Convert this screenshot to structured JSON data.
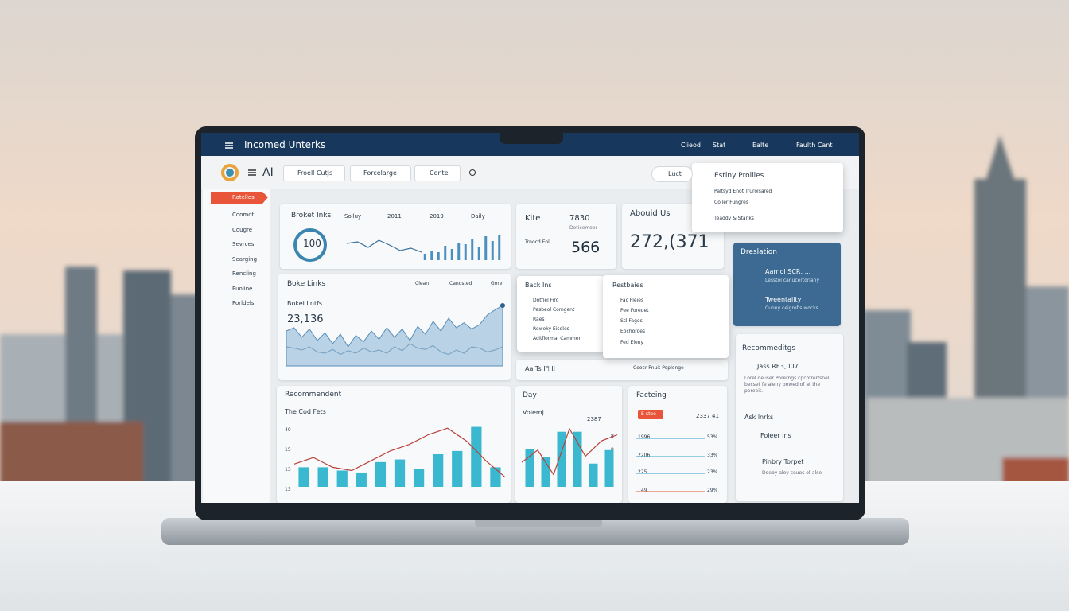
{
  "header": {
    "title": "Incomed Unterks",
    "menu": [
      "Clieod",
      "Stat",
      "Ealte",
      "Faulth Cant"
    ]
  },
  "toolbar": {
    "brand": "AI",
    "buttons": [
      "Froell Cutjs",
      "Forcelarge",
      "Conte"
    ],
    "search": "Luct"
  },
  "sidebar": [
    "Rotelles",
    "Coomot",
    "Cougre",
    "Sevrces",
    "Searging",
    "Rencling",
    "Puoline",
    "Porldels"
  ],
  "stats": {
    "title": "Broket Inks",
    "tabs": [
      "Solluy",
      "2011",
      "2019",
      "Daily"
    ],
    "gauge": "100",
    "line": {
      "values": [
        40,
        44,
        30,
        48,
        36,
        22,
        28,
        18
      ],
      "ylim": [
        0,
        60
      ]
    },
    "bars": {
      "values": [
        8,
        12,
        10,
        18,
        14,
        22,
        20,
        26,
        16,
        30,
        24,
        32
      ],
      "ylim": [
        0,
        35
      ]
    }
  },
  "kpi": {
    "title": "Kite",
    "value": "7830",
    "caption": "Deticemoor",
    "label": "Trnocd Eoll",
    "total": "566"
  },
  "about": {
    "title": "Abouid Us",
    "value": "272,(371"
  },
  "dropdown": {
    "title": "Estiny Prollles",
    "items": [
      "Paltsyd Enot Trurolsared",
      "Coller Fungres",
      "Teaddy & Stanks"
    ]
  },
  "blue": {
    "title": "Dreslation",
    "items": [
      {
        "title": "Aarnol SCR, ...",
        "text": "Lesstol canucertoriany"
      },
      {
        "title": "Tweentality",
        "text": "Cunny ceigrof's wocks"
      }
    ]
  },
  "links": {
    "title": "Boke Links",
    "legend": [
      "Clean",
      "Canosted",
      "Gore"
    ],
    "subtitle": "Bokel Lntfs",
    "value": "23,136",
    "area": {
      "values": [
        55,
        60,
        45,
        58,
        40,
        52,
        35,
        50,
        30,
        48,
        38,
        55,
        42,
        60,
        45,
        58,
        40,
        62,
        50,
        70,
        55,
        75,
        60,
        68,
        58,
        65,
        80,
        88,
        95
      ],
      "ylim": [
        0,
        100
      ]
    },
    "line": {
      "values": [
        30,
        28,
        25,
        30,
        22,
        20,
        26,
        18,
        24,
        20,
        28,
        22,
        25,
        20,
        30,
        24,
        35,
        28,
        26,
        32,
        22,
        18,
        25,
        20,
        30,
        28,
        22,
        25,
        30
      ],
      "ylim": [
        0,
        100
      ]
    }
  },
  "popups": [
    {
      "title": "Back Ins",
      "items": [
        "Dotfiel Fird",
        "Pesbeol Comgent",
        "Raes",
        "Reweky Eisdles",
        "Acitfiormal Cammer"
      ]
    },
    {
      "title": "Restbaies",
      "items": [
        "Fac Fleies",
        "Pee Foreget",
        "Ssl Fages",
        "Eochoroes",
        "Fed Eleny"
      ]
    }
  ],
  "strip": {
    "icons": "Aa  Ts  Iℸ  I⁞",
    "text": "Coocr  Fnuit  Peplenge"
  },
  "recs": {
    "title": "Recommeditgs",
    "value": "Jass RE3,007",
    "text": "Lorel deuser Porerngs cpcotrerfsnel becset fe aleny bowed of at the pereeit.",
    "subtitle": "Ask lnrks",
    "items": [
      "Foleer Ins",
      "Pinbry Torpet"
    ],
    "items_text": "Doeby aley ceuos of alse"
  },
  "recommend": {
    "title": "Recommendent",
    "subtitle": "The Cod Fets",
    "axis_labels": [
      "40",
      "15",
      "13",
      "13"
    ],
    "bars": {
      "values": [
        30,
        30,
        25,
        22,
        38,
        42,
        27,
        50,
        55,
        92,
        30
      ],
      "ylim": [
        0,
        100
      ]
    },
    "trend": {
      "values": [
        35,
        45,
        30,
        25,
        40,
        55,
        65,
        80,
        90,
        70,
        40,
        15
      ],
      "ylim": [
        0,
        100
      ]
    }
  },
  "day": {
    "title": "Day",
    "subtitle": "Volemj",
    "value": "2387",
    "axis_labels": [
      "8",
      "8",
      "4"
    ],
    "bars": {
      "values": [
        62,
        48,
        90,
        90,
        38,
        60
      ],
      "ylim": [
        0,
        100
      ]
    },
    "trend": {
      "values": [
        40,
        60,
        20,
        95,
        50,
        75,
        85
      ],
      "ylim": [
        0,
        100
      ]
    }
  },
  "factoring": {
    "title": "Facteing",
    "tag": "E-stoe",
    "value": "2337 41",
    "rows": [
      {
        "label": "1996",
        "pct": "53%"
      },
      {
        "label": "2206",
        "pct": "33%"
      },
      {
        "label": "225",
        "pct": "23%"
      },
      {
        "label": "49",
        "pct": "29%"
      }
    ]
  }
}
